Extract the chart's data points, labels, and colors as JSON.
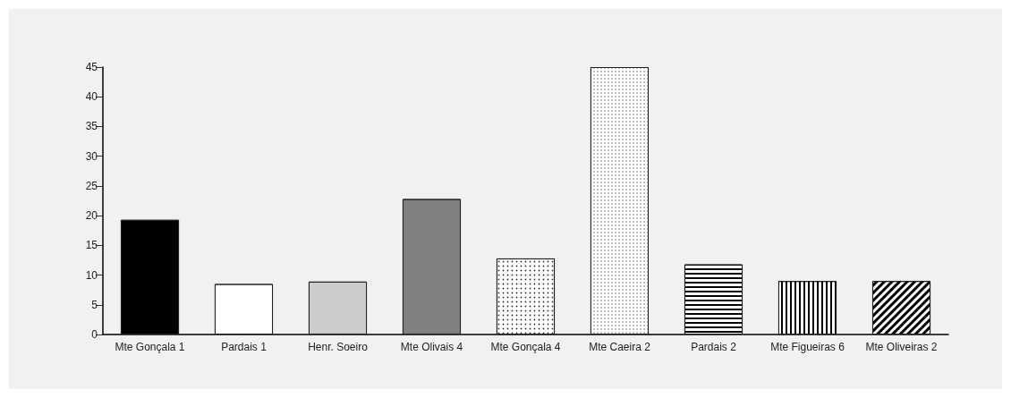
{
  "chart_data": {
    "type": "bar",
    "categories": [
      "Mte Gonçala 1",
      "Pardais 1",
      "Henr. Soeiro",
      "Mte Olivais 4",
      "Mte Gonçala 4",
      "Mte Caeira 2",
      "Pardais 2",
      "Mte Figueiras 6",
      "Mte Oliveiras 2"
    ],
    "values": [
      19.3,
      8.5,
      8.9,
      22.8,
      12.8,
      45,
      11.8,
      9,
      9
    ],
    "colors": [
      "#000000",
      "#ffffff",
      "#cccccc",
      "#808080",
      "#ffffff",
      "#ffffff",
      "#ffffff",
      "#ffffff",
      "#ffffff"
    ],
    "ylim": [
      0,
      45
    ],
    "yticks": [
      0,
      5,
      10,
      15,
      20,
      25,
      30,
      35,
      40,
      45
    ],
    "grid": false
  }
}
